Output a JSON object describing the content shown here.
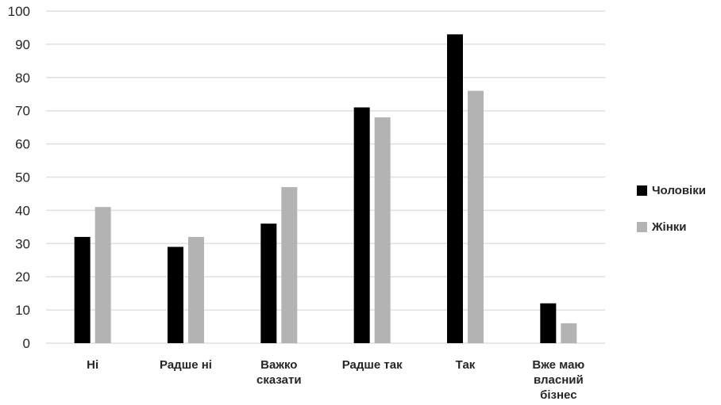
{
  "chart_data": {
    "type": "bar",
    "categories": [
      [
        "Ні"
      ],
      [
        "Радше ні"
      ],
      [
        "Важко",
        "сказати"
      ],
      [
        "Радше так"
      ],
      [
        "Так"
      ],
      [
        "Вже маю",
        "власний",
        "бізнес"
      ]
    ],
    "series": [
      {
        "name": "Чоловіки",
        "color": "#000000",
        "values": [
          32,
          29,
          36,
          71,
          93,
          12
        ]
      },
      {
        "name": "Жінки",
        "color": "#b3b3b3",
        "values": [
          41,
          32,
          47,
          68,
          76,
          6
        ]
      }
    ],
    "yticks": [
      0,
      10,
      20,
      30,
      40,
      50,
      60,
      70,
      80,
      90,
      100
    ],
    "ylim": [
      0,
      100
    ],
    "grid": true,
    "gridColor": "#e0e0e0",
    "legend": "right"
  }
}
